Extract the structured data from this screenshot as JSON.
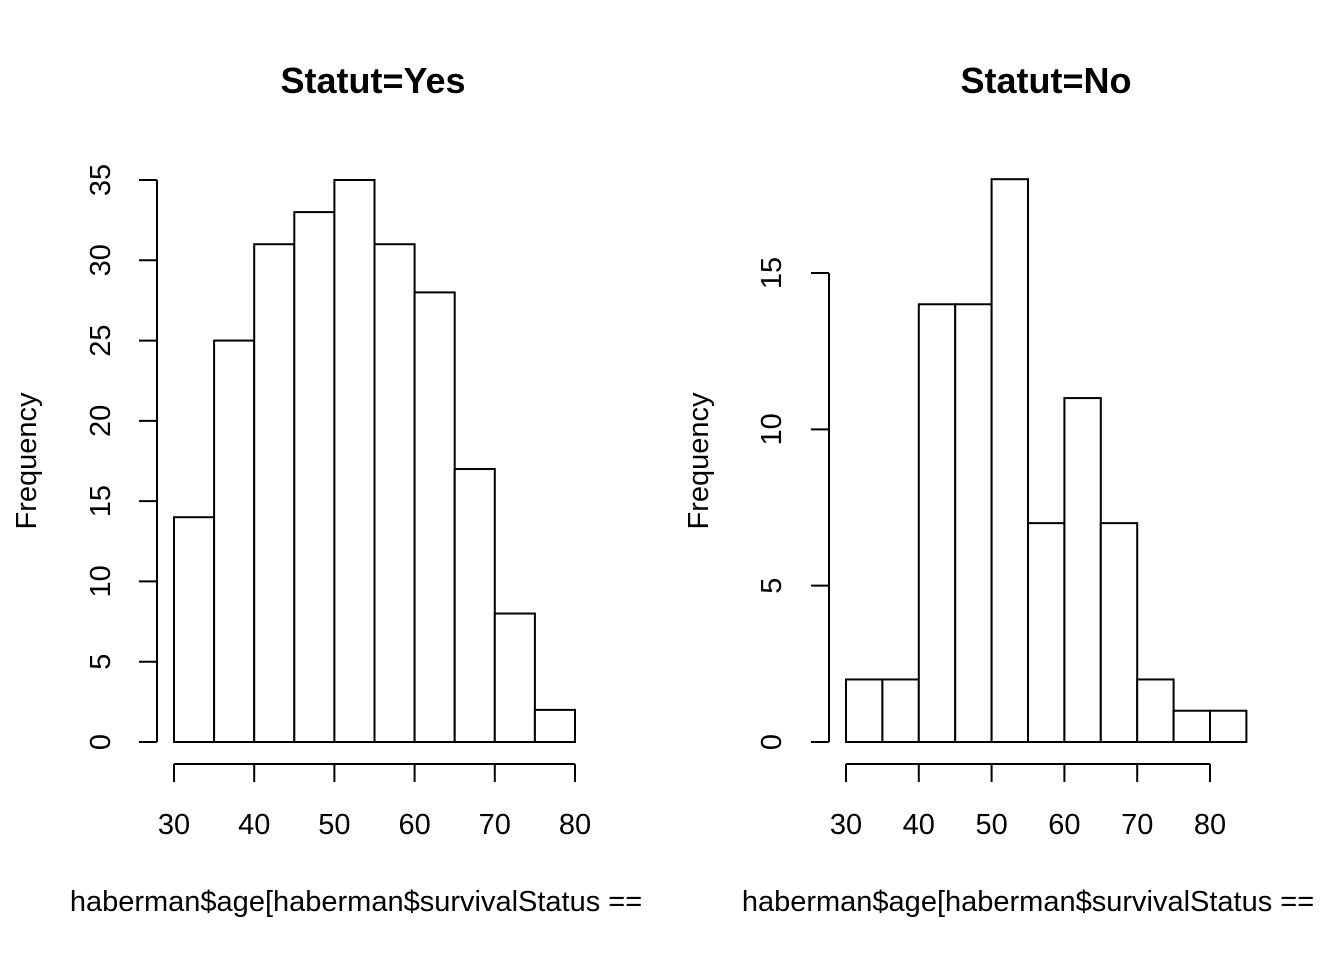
{
  "chart_data": [
    {
      "type": "bar",
      "title": "Statut=Yes",
      "xlabel": "haberman$age[haberman$survivalStatus ==",
      "ylabel": "Frequency",
      "bin_edges": [
        30,
        35,
        40,
        45,
        50,
        55,
        60,
        65,
        70,
        75,
        80
      ],
      "values": [
        14,
        25,
        31,
        33,
        35,
        31,
        28,
        17,
        8,
        2
      ],
      "xlim": [
        30,
        80
      ],
      "ylim": [
        0,
        35
      ],
      "x_ticks": [
        30,
        40,
        50,
        60,
        70,
        80
      ],
      "y_ticks": [
        0,
        5,
        10,
        15,
        20,
        25,
        30,
        35
      ],
      "grid": false
    },
    {
      "type": "bar",
      "title": "Statut=No",
      "xlabel": "haberman$age[haberman$survivalStatus ==",
      "ylabel": "Frequency",
      "bin_edges": [
        30,
        35,
        40,
        45,
        50,
        55,
        60,
        65,
        70,
        75,
        80,
        85
      ],
      "values": [
        2,
        2,
        14,
        14,
        18,
        7,
        11,
        7,
        2,
        1,
        1
      ],
      "xlim": [
        30,
        85
      ],
      "ylim": [
        0,
        18
      ],
      "x_ticks": [
        30,
        40,
        50,
        60,
        70,
        80
      ],
      "y_ticks": [
        0,
        5,
        10,
        15
      ],
      "grid": false
    }
  ]
}
